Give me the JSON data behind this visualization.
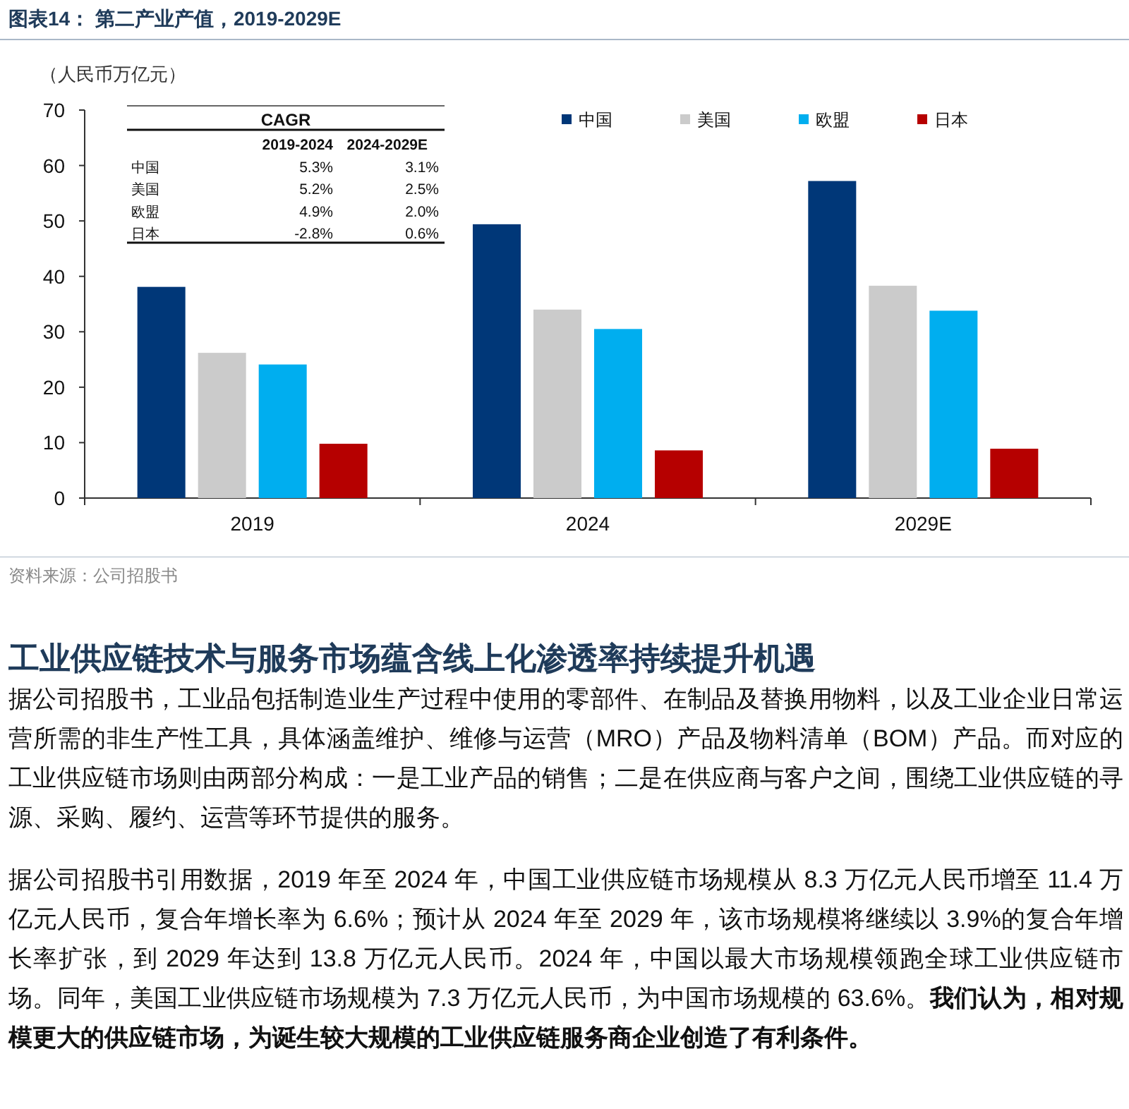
{
  "chart_data": {
    "type": "bar",
    "title": "图表14： 第二产业产值，2019-2029E",
    "ylabel": "（人民币万亿元）",
    "categories": [
      "2019",
      "2024",
      "2029E"
    ],
    "series": [
      {
        "name": "中国",
        "color": "#003778",
        "values": [
          38.1,
          49.4,
          57.2
        ]
      },
      {
        "name": "美国",
        "color": "#cbcbcb",
        "values": [
          26.2,
          34.0,
          38.3
        ]
      },
      {
        "name": "欧盟",
        "color": "#00aeef",
        "values": [
          24.1,
          30.5,
          33.8
        ]
      },
      {
        "name": "日本",
        "color": "#b60000",
        "values": [
          9.8,
          8.6,
          8.9
        ]
      }
    ],
    "ylim": [
      0,
      70
    ],
    "yticks": [
      0,
      10,
      20,
      30,
      40,
      50,
      60,
      70
    ],
    "grid": false,
    "legend": "top right",
    "annotations": [
      "CAGR",
      "2019-2024",
      "2024-2029E",
      "中国",
      "5.3%",
      "3.1%",
      "美国",
      "5.2%",
      "2.5%",
      "欧盟",
      "4.9%",
      "2.0%",
      "日本",
      "-2.8%",
      "0.6%",
      "资料来源：公司招股书",
      "工业供应链技术与服务市场蕴含线上化渗透率持续提升机遇",
      "据公司招股书，工业品包括制造业生产过程中使用的零部件、在制品及替换用物料，以及工业企业日常运营所需的非生产性工具，具体涵盖维护、维修与运营（MRO）产品及物料清单（BOM）产品。而对应的工业供应链市场则由两部分构成：一是工业产品的销售；二是在供应商与客户之间，围绕工业供应链的寻源、采购、履约、运营等环节提供的服务。",
      "据公司招股书引用数据，2019 年至 2024 年，中国工业供应链市场规模从 8.3 万亿元人民币增至 11.4 万亿元人民币，复合年增长率为 6.6%；预计从 2024 年至 2029 年，该市场规模将继续以 3.9%的复合年增长率扩张，到 2029 年达到 13.8 万亿元人民币。2024 年，中国以最大市场规模领跑全球工业供应链市场。同年，美国工业供应链市场规模为 7.3 万亿元人民币，为中国市场规模的 63.6%。",
      "我们认为，相对规模更大的供应链市场，为诞生较大规模的工业供应链服务商企业创造了有利条件。"
    ]
  }
}
